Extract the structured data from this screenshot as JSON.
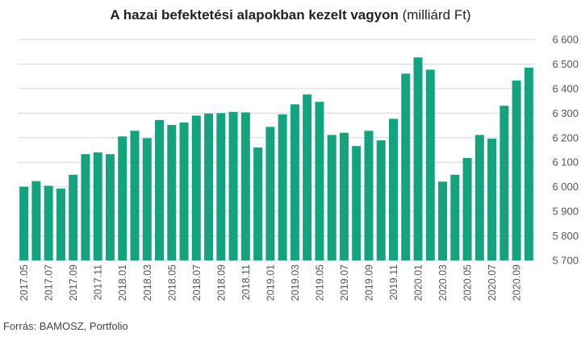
{
  "title": {
    "bold": "A hazai befektetési alapokban kezelt vagyon",
    "normal": "(milliárd Ft)"
  },
  "source": "Forrás: BAMOSZ, Portfolio",
  "colors": {
    "bar": "#14a37f",
    "grid": "#d6d6d6",
    "text": "#555555"
  },
  "chart_data": {
    "type": "bar",
    "title": "A hazai befektetési alapokban kezelt vagyon (milliárd Ft)",
    "xlabel": "",
    "ylabel": "",
    "ylim": [
      5700,
      6600
    ],
    "yticks": [
      5700,
      5800,
      5900,
      6000,
      6100,
      6200,
      6300,
      6400,
      6500,
      6600
    ],
    "ytick_labels": [
      "5 700",
      "5 800",
      "5 900",
      "6 000",
      "6 100",
      "6 200",
      "6 300",
      "6 400",
      "6 500",
      "6 600"
    ],
    "y_axis_position": "right",
    "grid": true,
    "categories": [
      "2017.05",
      "2017.06",
      "2017.07",
      "2017.08",
      "2017.09",
      "2017.10",
      "2017.11",
      "2017.12",
      "2018.01",
      "2018.02",
      "2018.03",
      "2018.04",
      "2018.05",
      "2018.06",
      "2018.07",
      "2018.08",
      "2018.09",
      "2018.10",
      "2018.11",
      "2018.12",
      "2019.01",
      "2019.02",
      "2019.03",
      "2019.04",
      "2019.05",
      "2019.06",
      "2019.07",
      "2019.08",
      "2019.09",
      "2019.10",
      "2019.11",
      "2019.12",
      "2020.01",
      "2020.02",
      "2020.03",
      "2020.04",
      "2020.05",
      "2020.06",
      "2020.07",
      "2020.08",
      "2020.09",
      "2020.10"
    ],
    "xtick_labels": [
      "2017.05",
      "2017.07",
      "2017.09",
      "2017.11",
      "2018.01",
      "2018.03",
      "2018.05",
      "2018.07",
      "2018.09",
      "2018.11",
      "2019.01",
      "2019.03",
      "2019.05",
      "2019.07",
      "2019.09",
      "2019.11",
      "2020.01",
      "2020.03",
      "2020.05",
      "2020.07",
      "2020.09"
    ],
    "values": [
      6000,
      6023,
      6004,
      5993,
      6049,
      6133,
      6140,
      6133,
      6205,
      6228,
      6198,
      6272,
      6252,
      6262,
      6290,
      6298,
      6300,
      6305,
      6303,
      6160,
      6244,
      6295,
      6336,
      6376,
      6346,
      6211,
      6220,
      6166,
      6228,
      6189,
      6277,
      6461,
      6527,
      6477,
      6021,
      6049,
      6117,
      6211,
      6196,
      6330,
      6433,
      6485
    ]
  }
}
